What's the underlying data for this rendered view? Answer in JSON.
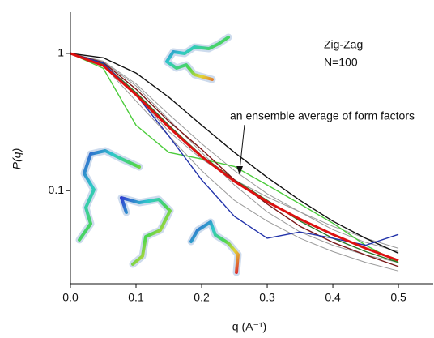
{
  "chart_data": {
    "type": "line",
    "xlabel": "q (A⁻¹)",
    "ylabel": "P(q)",
    "annotations": [
      "Zig-Zag",
      "N=100",
      "an ensemble average of form factors"
    ],
    "log_y": true,
    "x": [
      0,
      0.05,
      0.1,
      0.15,
      0.2,
      0.25,
      0.3,
      0.35,
      0.4,
      0.45,
      0.5
    ],
    "series": [
      {
        "color": "#9a9a9a",
        "width": 1,
        "values": [
          1,
          0.88,
          0.6,
          0.36,
          0.22,
          0.14,
          0.095,
          0.07,
          0.052,
          0.042,
          0.036
        ]
      },
      {
        "color": "#9a9a9a",
        "width": 1,
        "values": [
          1,
          0.85,
          0.5,
          0.27,
          0.17,
          0.12,
          0.09,
          0.07,
          0.055,
          0.045,
          0.038
        ]
      },
      {
        "color": "#9a9a9a",
        "width": 1,
        "values": [
          1,
          0.82,
          0.45,
          0.25,
          0.14,
          0.085,
          0.06,
          0.045,
          0.036,
          0.03,
          0.026
        ]
      },
      {
        "color": "#9a9a9a",
        "width": 1,
        "values": [
          1,
          0.87,
          0.58,
          0.33,
          0.19,
          0.11,
          0.07,
          0.05,
          0.04,
          0.034,
          0.03
        ]
      },
      {
        "color": "#111111",
        "width": 1.4,
        "values": [
          1,
          0.93,
          0.72,
          0.48,
          0.3,
          0.19,
          0.125,
          0.085,
          0.06,
          0.045,
          0.035
        ]
      },
      {
        "color": "#4ccc3c",
        "width": 1.4,
        "values": [
          1,
          0.78,
          0.3,
          0.19,
          0.17,
          0.15,
          0.11,
          0.08,
          0.058,
          0.04,
          0.03
        ]
      },
      {
        "color": "#2a7a2a",
        "width": 1.4,
        "values": [
          1,
          0.84,
          0.52,
          0.3,
          0.18,
          0.12,
          0.085,
          0.06,
          0.045,
          0.036,
          0.03
        ]
      },
      {
        "color": "#7a1a1a",
        "width": 1.4,
        "values": [
          1,
          0.86,
          0.55,
          0.32,
          0.2,
          0.12,
          0.08,
          0.055,
          0.042,
          0.034,
          0.028
        ]
      },
      {
        "color": "#2233aa",
        "width": 1.4,
        "values": [
          1,
          0.85,
          0.5,
          0.25,
          0.12,
          0.065,
          0.045,
          0.05,
          0.045,
          0.04,
          0.048
        ]
      },
      {
        "color": "#dd1111",
        "width": 3,
        "values": [
          1,
          0.815,
          0.5,
          0.29,
          0.177,
          0.117,
          0.083,
          0.062,
          0.048,
          0.038,
          0.031
        ]
      }
    ],
    "xlim": [
      0,
      0.553
    ],
    "ylim": [
      0.021,
      2
    ],
    "xticks": [
      {
        "value": 0,
        "label": "0.0"
      },
      0.1,
      0.2,
      0.3,
      0.4,
      0.5
    ],
    "yticks": [
      0.1,
      1
    ]
  }
}
